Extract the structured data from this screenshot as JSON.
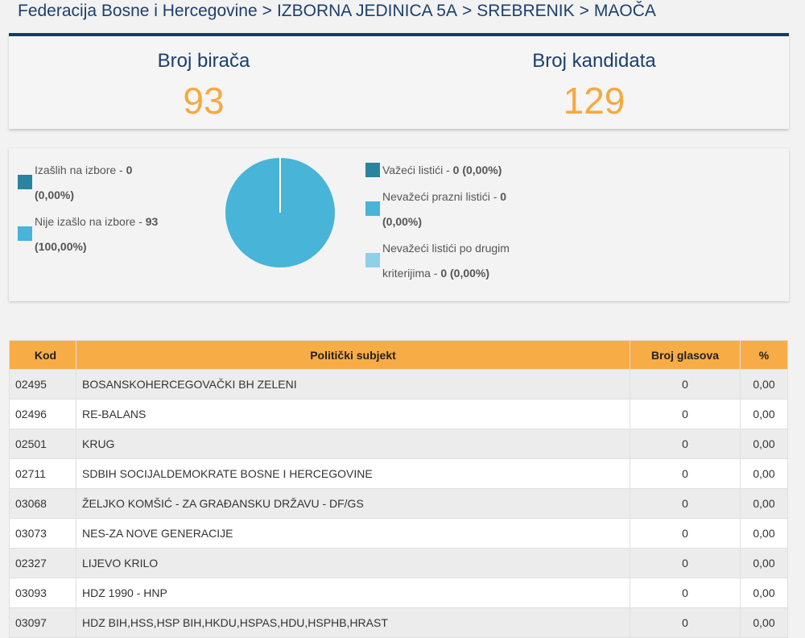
{
  "breadcrumb": {
    "items": [
      "Federacija Bosne i Hercegovine",
      "IZBORNA JEDINICA 5A",
      "SREBRENIK",
      "MAOČA"
    ],
    "separator": ">"
  },
  "stats": {
    "voters_label": "Broj birača",
    "voters_value": "93",
    "candidates_label": "Broj kandidata",
    "candidates_value": "129"
  },
  "turnout": {
    "left_legend": [
      {
        "label": "Izašlih na izbore - ",
        "value": "0",
        "percent": "(0,00%)",
        "color": "#2a84a0"
      },
      {
        "label": "Nije izašlo na izbore - ",
        "value": "93",
        "percent": "(100,00%)",
        "color": "#47b4d8"
      }
    ],
    "right_legend": [
      {
        "label": "Važeći listići - ",
        "value": "0 (0,00%)",
        "color": "#2a84a0"
      },
      {
        "label": "Nevažeći prazni listići - ",
        "value": "0",
        "percent": "(0,00%)",
        "color": "#47b4d8"
      },
      {
        "label": "Nevažeći listići po drugim",
        "label2": "kriterijima - ",
        "value": "0 (0,00%)",
        "color": "#8dd0e8"
      }
    ],
    "pie": {
      "turned_out_fraction": 0.0,
      "not_turned_out_fraction": 1.0,
      "colors": {
        "turned_out": "#2a84a0",
        "not_turned_out": "#47b4d8"
      }
    }
  },
  "table": {
    "headers": {
      "kod": "Kod",
      "subjekt": "Politički subjekt",
      "glasovi": "Broj glasova",
      "pct": "%"
    },
    "rows": [
      {
        "kod": "02495",
        "subjekt": "BOSANSKOHERCEGOVAČKI BH ZELENI",
        "glasovi": "0",
        "pct": "0,00"
      },
      {
        "kod": "02496",
        "subjekt": "RE-BALANS",
        "glasovi": "0",
        "pct": "0,00"
      },
      {
        "kod": "02501",
        "subjekt": "KRUG",
        "glasovi": "0",
        "pct": "0,00"
      },
      {
        "kod": "02711",
        "subjekt": "SDBIH SOCIJALDEMOKRATE BOSNE I HERCEGOVINE",
        "glasovi": "0",
        "pct": "0,00"
      },
      {
        "kod": "03068",
        "subjekt": "ŽELJKO KOMŠIĆ - ZA GRAĐANSKU DRŽAVU - DF/GS",
        "glasovi": "0",
        "pct": "0,00"
      },
      {
        "kod": "03073",
        "subjekt": "NES-ZA NOVE GENERACIJE",
        "glasovi": "0",
        "pct": "0,00"
      },
      {
        "kod": "02327",
        "subjekt": "LIJEVO KRILO",
        "glasovi": "0",
        "pct": "0,00"
      },
      {
        "kod": "03093",
        "subjekt": "HDZ 1990 - HNP",
        "glasovi": "0",
        "pct": "0,00"
      },
      {
        "kod": "03097",
        "subjekt": "HDZ BIH,HSS,HSP BIH,HKDU,HSPAS,HDU,HSPHB,HRAST",
        "glasovi": "0",
        "pct": "0,00"
      }
    ]
  }
}
